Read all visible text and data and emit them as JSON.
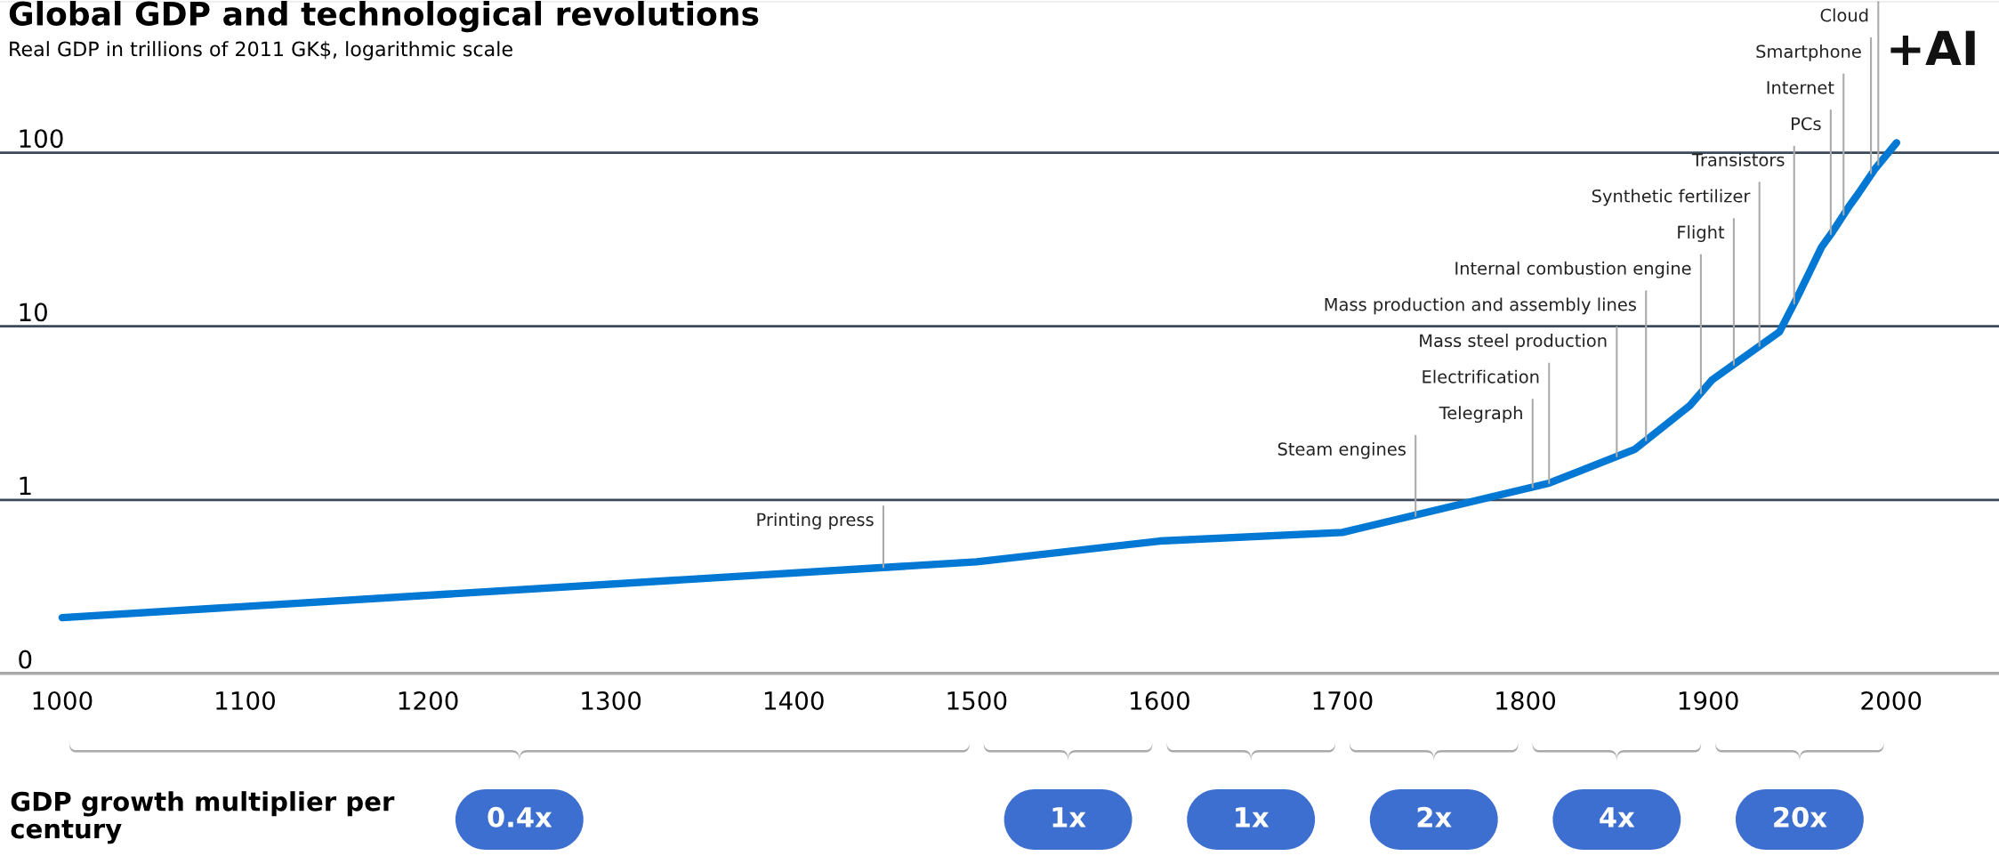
{
  "chart_data": {
    "type": "line",
    "title": "Global GDP and technological revolutions",
    "subtitle": "Real GDP in trillions of 2011 GK$, logarithmic scale",
    "x": [
      1000,
      1500,
      1600,
      1700,
      1813,
      1860,
      1890,
      1902,
      1939,
      1949,
      1962,
      1968,
      1977,
      1982,
      1991,
      2003
    ],
    "series": [
      {
        "color": "#0078d4",
        "values": [
          0.21,
          0.44,
          0.58,
          0.65,
          1.25,
          1.96,
          3.5,
          4.9,
          9.3,
          14.9,
          28.6,
          35,
          49,
          58,
          80,
          114
        ]
      }
    ],
    "log": true,
    "ylim": [
      0.1,
      740
    ],
    "yticks": [
      {
        "value": 0.1,
        "label": "0"
      },
      1,
      10,
      100
    ],
    "xlim": [
      966,
      2059
    ],
    "xticks": [
      1000,
      1100,
      1200,
      1300,
      1400,
      1500,
      1600,
      1700,
      1800,
      1900,
      2000
    ],
    "grid": "y",
    "marker": "none",
    "line_style": "solid",
    "annotations": [
      "+AI",
      "GDP growth multiplier per century",
      {
        "text": "Printing press",
        "x": 1449,
        "y": 0.41
      },
      {
        "text": "Steam engines",
        "x": 1740,
        "y": 0.81
      },
      {
        "text": "Telegraph",
        "x": 1804,
        "y": 1.18
      },
      {
        "text": "Electrification",
        "x": 1813,
        "y": 1.25
      },
      {
        "text": "Mass steel production",
        "x": 1850,
        "y": 1.78
      },
      {
        "text": "Mass production and assembly lines",
        "x": 1866,
        "y": 2.2
      },
      {
        "text": "Internal combustion engine",
        "x": 1896,
        "y": 4.1
      },
      {
        "text": "Flight",
        "x": 1914,
        "y": 6.0
      },
      {
        "text": "Synthetic fertilizer",
        "x": 1928,
        "y": 7.7
      },
      {
        "text": "Transistors",
        "x": 1947,
        "y": 13.5
      },
      {
        "text": "PCs",
        "x": 1967,
        "y": 34
      },
      {
        "text": "Internet",
        "x": 1974,
        "y": 44
      },
      {
        "text": "Smartphone",
        "x": 1989,
        "y": 76
      },
      {
        "text": "Cloud",
        "x": 1993,
        "y": 85
      },
      "0.4x",
      "1x",
      "1x",
      "2x",
      "4x",
      "20x"
    ]
  }
}
